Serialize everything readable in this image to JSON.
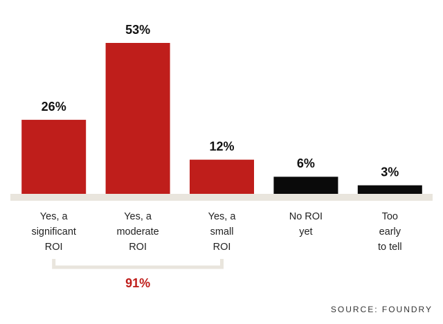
{
  "chart_data": {
    "type": "bar",
    "categories": [
      [
        "Yes, a",
        "significant",
        "ROI"
      ],
      [
        "Yes, a",
        "moderate",
        "ROI"
      ],
      [
        "Yes, a",
        "small",
        "ROI"
      ],
      [
        "No ROI",
        "yet"
      ],
      [
        "Too",
        "early",
        "to tell"
      ]
    ],
    "values": [
      26,
      53,
      12,
      6,
      3
    ],
    "value_labels": [
      "26%",
      "53%",
      "12%",
      "6%",
      "3%"
    ],
    "colors": [
      "#bf1e1b",
      "#bf1e1b",
      "#bf1e1b",
      "#0a0a0a",
      "#0a0a0a"
    ],
    "bracket_label": "91%",
    "source": "SOURCE: FOUNDRY"
  }
}
